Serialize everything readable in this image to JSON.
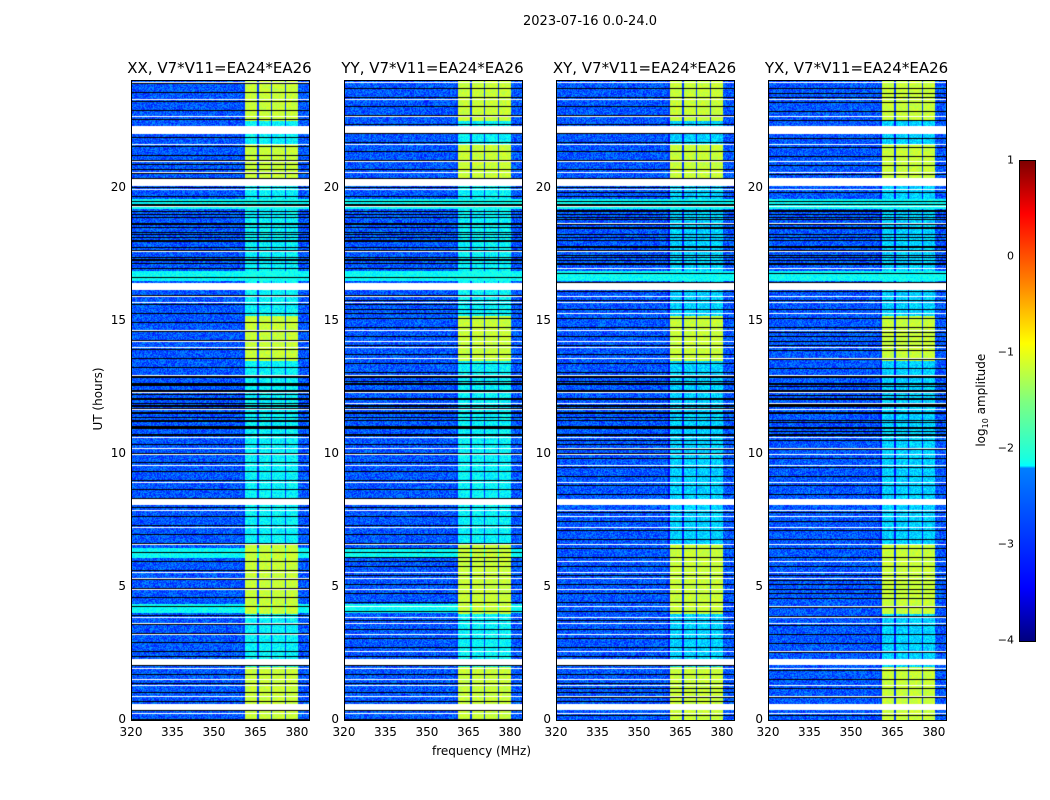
{
  "suptitle": "2023-07-16 0.0-24.0",
  "chart_data": {
    "type": "heatmap",
    "title": "2023-07-16 0.0-24.0",
    "xlabel": "frequency (MHz)",
    "ylabel": "UT (hours)",
    "xlim": [
      320,
      384
    ],
    "ylim": [
      0,
      24
    ],
    "xticks": [
      "320",
      "335",
      "350",
      "365",
      "380"
    ],
    "yticks": [
      "0",
      "5",
      "10",
      "15",
      "20"
    ],
    "panels": [
      {
        "title": "XX, V7*V11=EA24*EA26"
      },
      {
        "title": "YY, V7*V11=EA24*EA26"
      },
      {
        "title": "XY, V7*V11=EA24*EA26"
      },
      {
        "title": "YX, V7*V11=EA24*EA26"
      }
    ],
    "colorbar": {
      "label": "log10 amplitude",
      "label_main": "log",
      "label_sub": "10",
      "label_rest": " amplitude",
      "range": [
        -4,
        1
      ],
      "ticks": [
        "1",
        "0",
        "−1",
        "−2",
        "−3",
        "−4"
      ],
      "colormap": "jet"
    },
    "rfi_band_mhz": [
      360,
      380
    ],
    "flagged_hours_white": [
      0.5,
      2.2,
      8.2,
      16.3,
      20.2,
      22.2
    ],
    "bright_hours": [
      [
        0,
        2
      ],
      [
        4,
        6.6
      ],
      [
        13.5,
        15.2
      ],
      [
        20.2,
        21.6
      ],
      [
        22.5,
        24
      ]
    ],
    "broadband_rfi_hours": [
      4.2,
      6.3,
      16.7,
      19.4
    ]
  }
}
